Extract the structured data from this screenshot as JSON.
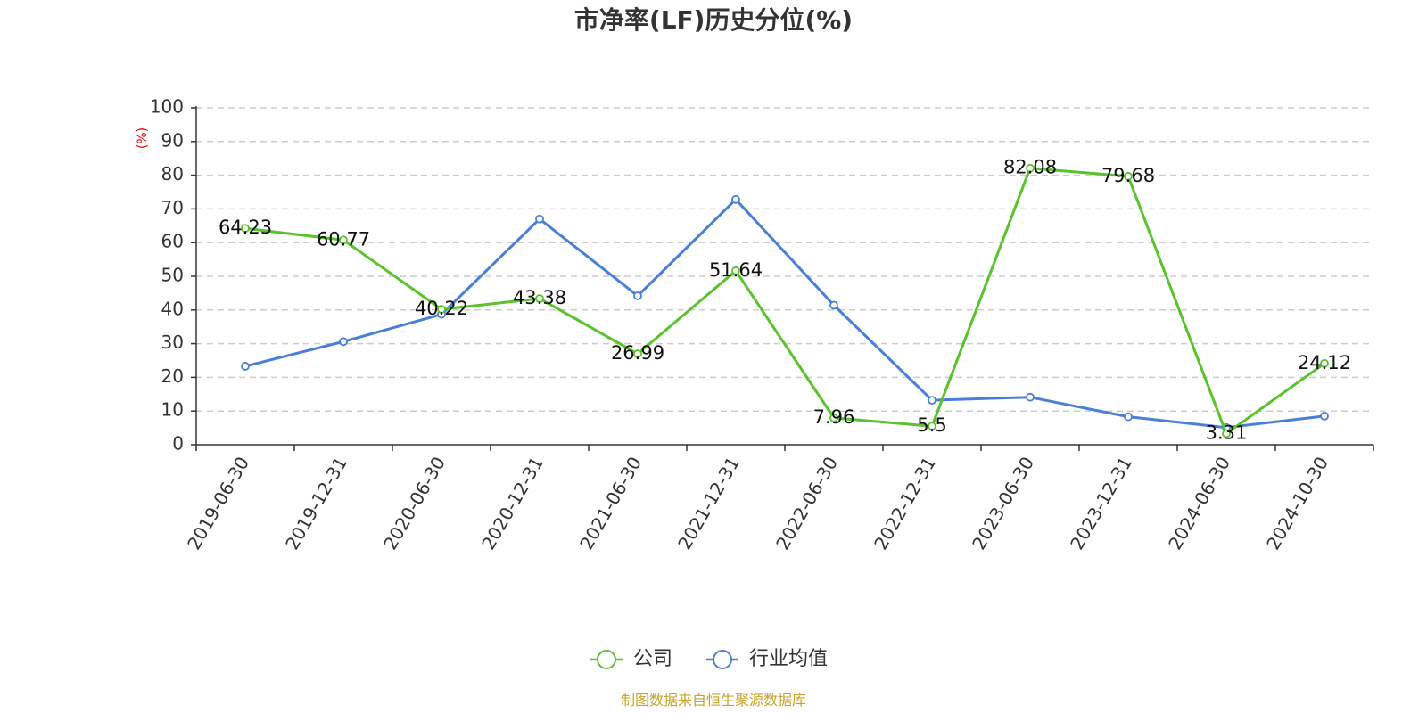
{
  "chart_data": {
    "type": "line",
    "title": "市净率(LF)历史分位(%)",
    "ylabel": "(%)",
    "xlabel": "",
    "ylim": [
      0,
      100
    ],
    "yticks": [
      0,
      10,
      20,
      30,
      40,
      50,
      60,
      70,
      80,
      90,
      100
    ],
    "grid": true,
    "legend_position": "bottom",
    "categories": [
      "2019-06-30",
      "2019-12-31",
      "2020-06-30",
      "2020-12-31",
      "2021-06-30",
      "2021-12-31",
      "2022-06-30",
      "2022-12-31",
      "2023-06-30",
      "2023-12-31",
      "2024-06-30",
      "2024-10-30"
    ],
    "series": [
      {
        "name": "公司",
        "color": "#5ac22a",
        "show_labels": true,
        "values": [
          64.23,
          60.77,
          40.22,
          43.38,
          26.99,
          51.64,
          7.96,
          5.5,
          82.08,
          79.68,
          3.31,
          24.12
        ]
      },
      {
        "name": "行业均值",
        "color": "#4a7fd8",
        "show_labels": false,
        "values": [
          23.3,
          30.6,
          38.7,
          67.0,
          44.2,
          72.8,
          41.4,
          13.2,
          14.1,
          8.3,
          5.1,
          8.5
        ]
      }
    ],
    "source": "制图数据来自恒生聚源数据库"
  }
}
